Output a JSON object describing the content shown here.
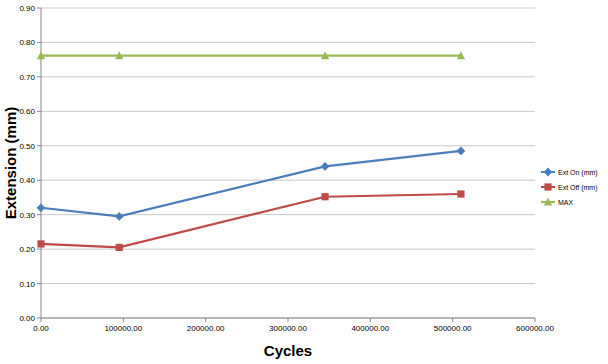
{
  "chart_data": {
    "type": "line",
    "x_label": "Cycles",
    "y_label": "Extension (mm)",
    "xlim": [
      0,
      600000
    ],
    "xticks": [
      {
        "value": 0,
        "label": "0.00"
      },
      {
        "value": 100000,
        "label": "100000.00"
      },
      {
        "value": 200000,
        "label": "200000.00"
      },
      {
        "value": 300000,
        "label": "300000.00"
      },
      {
        "value": 400000,
        "label": "400000.00"
      },
      {
        "value": 500000,
        "label": "500000.00"
      },
      {
        "value": 600000,
        "label": "600000.00"
      }
    ],
    "ylim": [
      0,
      0.9
    ],
    "yticks": [
      {
        "value": 0,
        "label": "0.00"
      },
      {
        "value": 0.1,
        "label": "0.10"
      },
      {
        "value": 0.2,
        "label": "0.20"
      },
      {
        "value": 0.3,
        "label": "0.30"
      },
      {
        "value": 0.4,
        "label": "0.40"
      },
      {
        "value": 0.5,
        "label": "0.50"
      },
      {
        "value": 0.6,
        "label": "0.60"
      },
      {
        "value": 0.7,
        "label": "0.70"
      },
      {
        "value": 0.8,
        "label": "0.80"
      },
      {
        "value": 0.9,
        "label": "0.90"
      }
    ],
    "x": [
      0,
      95000,
      345000,
      510000
    ],
    "series": [
      {
        "name": "Ext On (mm)",
        "color": "#4a7ebb",
        "marker": "diamond",
        "values": [
          0.32,
          0.295,
          0.44,
          0.485
        ]
      },
      {
        "name": "Ext Off (mm)",
        "color": "#be4b48",
        "marker": "square",
        "values": [
          0.215,
          0.205,
          0.352,
          0.36
        ]
      },
      {
        "name": "MAX",
        "color": "#98b954",
        "marker": "triangle",
        "values": [
          0.762,
          0.762,
          0.762,
          0.762
        ]
      }
    ],
    "grid": true,
    "legend": "right"
  }
}
